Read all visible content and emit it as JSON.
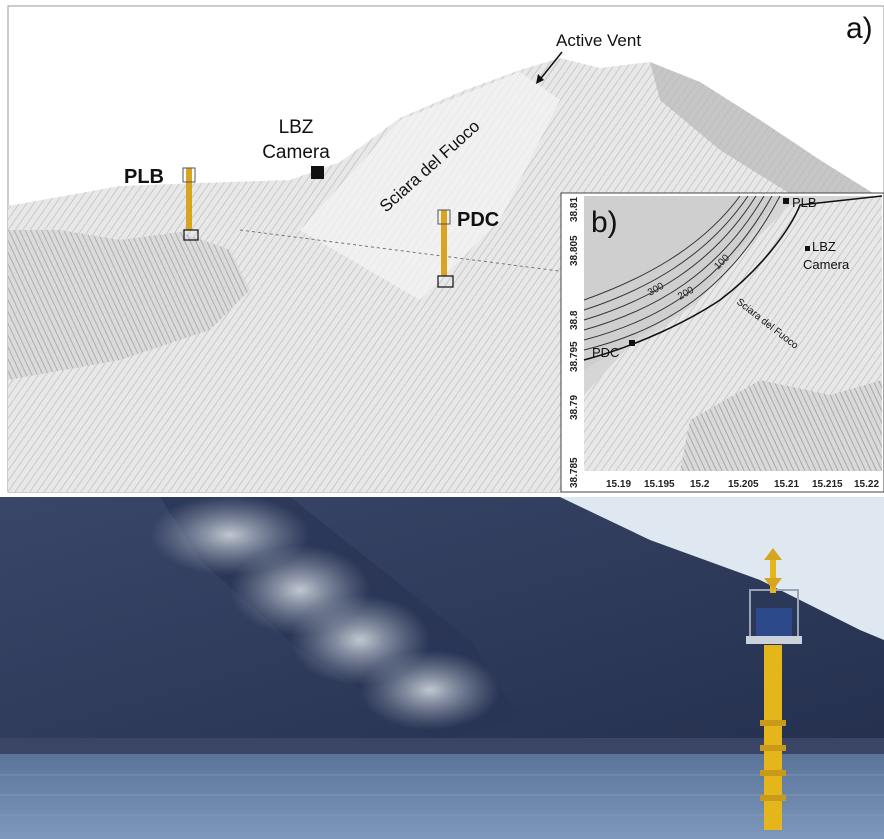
{
  "panel_a": {
    "label": "a)",
    "active_vent": "Active Vent",
    "lbz_line1": "LBZ",
    "lbz_line2": "Camera",
    "plb": "PLB",
    "pdc": "PDC",
    "sciara": "Sciara del Fuoco"
  },
  "panel_b": {
    "label": "b)",
    "plb": "PLB",
    "lbz_line1": "LBZ",
    "lbz_line2": "Camera",
    "pdc": "PDC",
    "sciara": "Sciara del Fuoco",
    "contours": [
      "300",
      "200",
      "100"
    ],
    "lat_ticks": [
      "38.81",
      "38.805",
      "38.8",
      "38.795",
      "38.79",
      "38.785"
    ],
    "lon_ticks": [
      "15.19",
      "15.195",
      "15.2",
      "15.205",
      "15.21",
      "15.215",
      "15.22"
    ]
  },
  "colors": {
    "sea": "#6d86ab",
    "slope": "#2f3a5b",
    "sky": "#dfe8f1",
    "buoy_yellow": "#e5b51c"
  }
}
